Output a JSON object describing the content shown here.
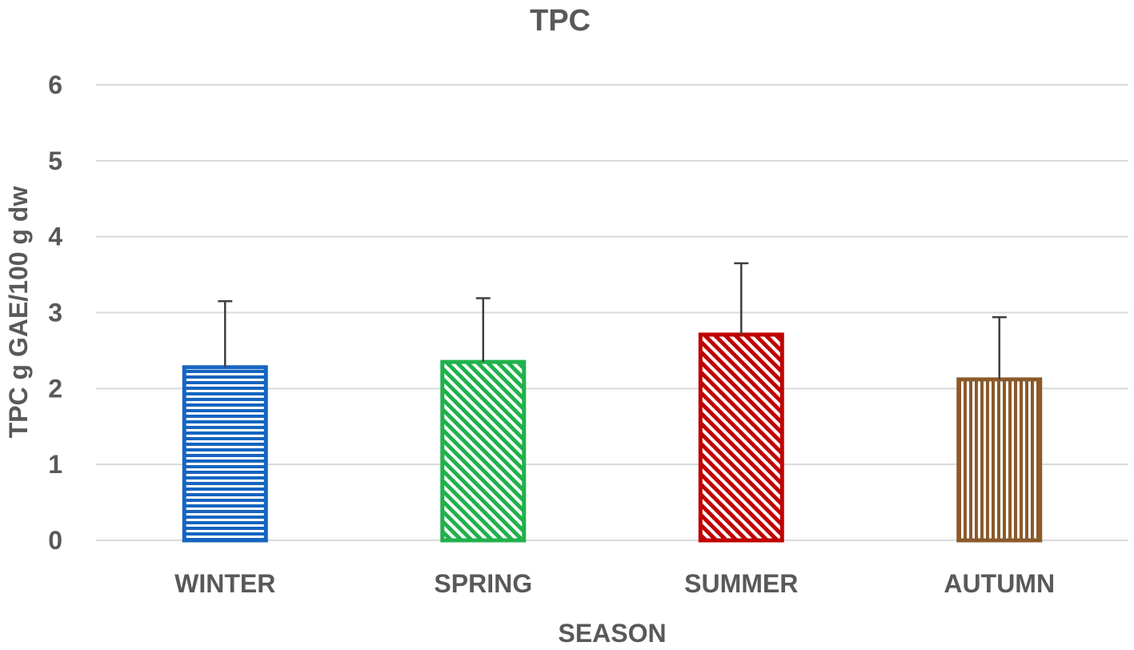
{
  "chart_data": {
    "type": "bar",
    "title": "TPC",
    "xlabel": "SEASON",
    "ylabel": "TPC g GAE/100 g dw",
    "ylim": [
      0,
      6
    ],
    "yticks": [
      "0",
      "1",
      "2",
      "3",
      "4",
      "5",
      "6"
    ],
    "grid": true,
    "legend": "none",
    "categories": [
      "WINTER",
      "SPRING",
      "SUMMER",
      "AUTUMN"
    ],
    "values": [
      2.28,
      2.35,
      2.71,
      2.12
    ],
    "error_upper": [
      3.15,
      3.19,
      3.65,
      2.94
    ],
    "colors": [
      "#1565c0",
      "#21b14c",
      "#c00000",
      "#8b5a2b"
    ],
    "patterns": [
      "horizontal-lines",
      "diagonal-lines",
      "diagonal-lines",
      "vertical-lines"
    ]
  }
}
